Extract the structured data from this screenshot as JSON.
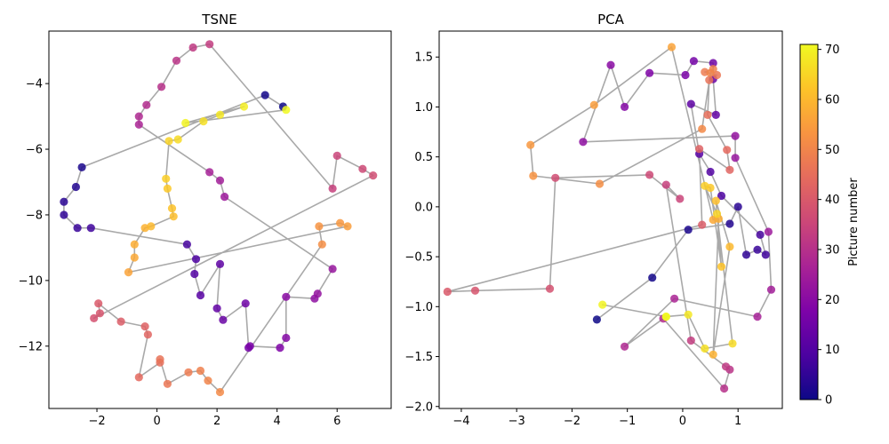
{
  "chart_data": [
    {
      "type": "scatter",
      "title": "TSNE",
      "xlim": [
        -3.6,
        7.8
      ],
      "ylim": [
        -13.9,
        -2.4
      ],
      "xticks": [
        -2,
        0,
        2,
        4,
        6
      ],
      "yticks": [
        -12,
        -10,
        -8,
        -6,
        -4
      ],
      "points": [
        {
          "x": 4.2,
          "y": -4.7,
          "t": 0
        },
        {
          "x": 3.6,
          "y": -4.35,
          "t": 1
        },
        {
          "x": -2.5,
          "y": -6.55,
          "t": 2
        },
        {
          "x": -2.7,
          "y": -7.15,
          "t": 3
        },
        {
          "x": -3.1,
          "y": -7.6,
          "t": 4
        },
        {
          "x": -3.1,
          "y": -8.0,
          "t": 5
        },
        {
          "x": -2.65,
          "y": -8.4,
          "t": 6
        },
        {
          "x": -2.2,
          "y": -8.4,
          "t": 7
        },
        {
          "x": 1.0,
          "y": -8.9,
          "t": 8
        },
        {
          "x": 1.3,
          "y": -9.35,
          "t": 9
        },
        {
          "x": 1.25,
          "y": -9.8,
          "t": 10
        },
        {
          "x": 1.45,
          "y": -10.45,
          "t": 11
        },
        {
          "x": 2.1,
          "y": -9.5,
          "t": 12
        },
        {
          "x": 2.0,
          "y": -10.85,
          "t": 13
        },
        {
          "x": 2.2,
          "y": -11.2,
          "t": 14
        },
        {
          "x": 2.95,
          "y": -10.7,
          "t": 15
        },
        {
          "x": 3.05,
          "y": -12.05,
          "t": 16
        },
        {
          "x": 3.1,
          "y": -12.0,
          "t": 17
        },
        {
          "x": 4.1,
          "y": -12.05,
          "t": 18
        },
        {
          "x": 4.3,
          "y": -11.75,
          "t": 19
        },
        {
          "x": 4.3,
          "y": -10.5,
          "t": 20
        },
        {
          "x": 5.25,
          "y": -10.55,
          "t": 21
        },
        {
          "x": 5.35,
          "y": -10.4,
          "t": 22
        },
        {
          "x": 5.85,
          "y": -9.65,
          "t": 23
        },
        {
          "x": 2.25,
          "y": -7.45,
          "t": 24
        },
        {
          "x": 2.1,
          "y": -6.95,
          "t": 25
        },
        {
          "x": 1.75,
          "y": -6.7,
          "t": 26
        },
        {
          "x": -0.6,
          "y": -5.25,
          "t": 27
        },
        {
          "x": -0.6,
          "y": -5.0,
          "t": 28
        },
        {
          "x": -0.35,
          "y": -4.65,
          "t": 29
        },
        {
          "x": 0.15,
          "y": -4.1,
          "t": 30
        },
        {
          "x": 0.65,
          "y": -3.3,
          "t": 31
        },
        {
          "x": 1.2,
          "y": -2.9,
          "t": 32
        },
        {
          "x": 1.75,
          "y": -2.8,
          "t": 33
        },
        {
          "x": 5.85,
          "y": -7.2,
          "t": 34
        },
        {
          "x": 6.0,
          "y": -6.2,
          "t": 35
        },
        {
          "x": 6.85,
          "y": -6.6,
          "t": 36
        },
        {
          "x": 7.2,
          "y": -6.8,
          "t": 37
        },
        {
          "x": -2.1,
          "y": -11.15,
          "t": 38
        },
        {
          "x": -1.9,
          "y": -11.0,
          "t": 39
        },
        {
          "x": -1.95,
          "y": -10.7,
          "t": 40
        },
        {
          "x": -1.2,
          "y": -11.25,
          "t": 41
        },
        {
          "x": -0.4,
          "y": -11.4,
          "t": 42
        },
        {
          "x": -0.3,
          "y": -11.65,
          "t": 43
        },
        {
          "x": -0.6,
          "y": -12.95,
          "t": 44
        },
        {
          "x": 0.1,
          "y": -12.5,
          "t": 45
        },
        {
          "x": 0.1,
          "y": -12.4,
          "t": 46
        },
        {
          "x": 0.35,
          "y": -13.15,
          "t": 47
        },
        {
          "x": 1.05,
          "y": -12.8,
          "t": 48
        },
        {
          "x": 1.45,
          "y": -12.75,
          "t": 49
        },
        {
          "x": 1.7,
          "y": -13.05,
          "t": 50
        },
        {
          "x": 2.1,
          "y": -13.4,
          "t": 51
        },
        {
          "x": 5.5,
          "y": -8.9,
          "t": 52
        },
        {
          "x": 5.4,
          "y": -8.35,
          "t": 53
        },
        {
          "x": 6.1,
          "y": -8.25,
          "t": 54
        },
        {
          "x": 6.35,
          "y": -8.35,
          "t": 55
        },
        {
          "x": -0.95,
          "y": -9.75,
          "t": 56
        },
        {
          "x": -0.75,
          "y": -9.3,
          "t": 57
        },
        {
          "x": -0.75,
          "y": -8.9,
          "t": 58
        },
        {
          "x": -0.4,
          "y": -8.4,
          "t": 59
        },
        {
          "x": -0.2,
          "y": -8.35,
          "t": 60
        },
        {
          "x": 0.55,
          "y": -8.05,
          "t": 61
        },
        {
          "x": 0.5,
          "y": -7.8,
          "t": 62
        },
        {
          "x": 0.35,
          "y": -7.2,
          "t": 63
        },
        {
          "x": 0.3,
          "y": -6.9,
          "t": 64
        },
        {
          "x": 0.4,
          "y": -5.75,
          "t": 65
        },
        {
          "x": 0.7,
          "y": -5.7,
          "t": 66
        },
        {
          "x": 1.55,
          "y": -5.15,
          "t": 67
        },
        {
          "x": 2.1,
          "y": -4.95,
          "t": 68
        },
        {
          "x": 2.9,
          "y": -4.7,
          "t": 69
        },
        {
          "x": 0.95,
          "y": -5.2,
          "t": 70
        },
        {
          "x": 4.3,
          "y": -4.8,
          "t": 71
        }
      ]
    },
    {
      "type": "scatter",
      "title": "PCA",
      "xlim": [
        -4.4,
        1.8
      ],
      "ylim": [
        -2.02,
        1.76
      ],
      "xticks": [
        -4,
        -3,
        -2,
        -1,
        0,
        1
      ],
      "yticks": [
        -2.0,
        -1.5,
        -1.0,
        -0.5,
        0.0,
        0.5,
        1.0,
        1.5
      ],
      "points": [
        {
          "x": -1.55,
          "y": -1.13,
          "t": 0
        },
        {
          "x": -0.55,
          "y": -0.71,
          "t": 1
        },
        {
          "x": 0.1,
          "y": -0.23,
          "t": 2
        },
        {
          "x": 0.85,
          "y": -0.17,
          "t": 3
        },
        {
          "x": 1.0,
          "y": 0.0,
          "t": 4
        },
        {
          "x": 1.15,
          "y": -0.48,
          "t": 5
        },
        {
          "x": 1.35,
          "y": -0.43,
          "t": 6
        },
        {
          "x": 1.5,
          "y": -0.48,
          "t": 7
        },
        {
          "x": 1.4,
          "y": -0.28,
          "t": 8
        },
        {
          "x": 0.7,
          "y": 0.11,
          "t": 9
        },
        {
          "x": 0.5,
          "y": 0.35,
          "t": 10
        },
        {
          "x": 0.3,
          "y": 0.53,
          "t": 11
        },
        {
          "x": 0.15,
          "y": 1.03,
          "t": 12
        },
        {
          "x": 0.6,
          "y": 0.92,
          "t": 13
        },
        {
          "x": 0.55,
          "y": 1.28,
          "t": 14
        },
        {
          "x": 0.55,
          "y": 1.44,
          "t": 15
        },
        {
          "x": 0.2,
          "y": 1.46,
          "t": 16
        },
        {
          "x": 0.05,
          "y": 1.32,
          "t": 17
        },
        {
          "x": -0.6,
          "y": 1.34,
          "t": 18
        },
        {
          "x": -1.05,
          "y": 1.0,
          "t": 19
        },
        {
          "x": -1.3,
          "y": 1.42,
          "t": 20
        },
        {
          "x": -1.8,
          "y": 0.65,
          "t": 21
        },
        {
          "x": 0.95,
          "y": 0.71,
          "t": 22
        },
        {
          "x": 0.95,
          "y": 0.49,
          "t": 23
        },
        {
          "x": 1.55,
          "y": -0.25,
          "t": 24
        },
        {
          "x": 1.6,
          "y": -0.83,
          "t": 25
        },
        {
          "x": 1.35,
          "y": -1.1,
          "t": 26
        },
        {
          "x": -0.15,
          "y": -0.92,
          "t": 27
        },
        {
          "x": -1.05,
          "y": -1.4,
          "t": 28
        },
        {
          "x": -0.35,
          "y": -1.12,
          "t": 29
        },
        {
          "x": 0.75,
          "y": -1.82,
          "t": 30
        },
        {
          "x": 0.85,
          "y": -1.63,
          "t": 31
        },
        {
          "x": 0.78,
          "y": -1.6,
          "t": 32
        },
        {
          "x": 0.15,
          "y": -1.34,
          "t": 33
        },
        {
          "x": -0.3,
          "y": 0.22,
          "t": 34
        },
        {
          "x": -0.05,
          "y": 0.08,
          "t": 35
        },
        {
          "x": -0.6,
          "y": 0.32,
          "t": 36
        },
        {
          "x": -2.3,
          "y": 0.29,
          "t": 37
        },
        {
          "x": -2.4,
          "y": -0.82,
          "t": 38
        },
        {
          "x": -3.75,
          "y": -0.84,
          "t": 39
        },
        {
          "x": -4.25,
          "y": -0.85,
          "t": 40
        },
        {
          "x": 0.35,
          "y": -0.18,
          "t": 41
        },
        {
          "x": 0.3,
          "y": 0.58,
          "t": 42
        },
        {
          "x": 0.85,
          "y": 0.37,
          "t": 43
        },
        {
          "x": 0.8,
          "y": 0.57,
          "t": 44
        },
        {
          "x": 0.45,
          "y": 0.92,
          "t": 45
        },
        {
          "x": 0.48,
          "y": 1.27,
          "t": 46
        },
        {
          "x": 0.62,
          "y": 1.32,
          "t": 47
        },
        {
          "x": 0.4,
          "y": 1.35,
          "t": 48
        },
        {
          "x": 0.55,
          "y": 1.38,
          "t": 49
        },
        {
          "x": 0.5,
          "y": 1.34,
          "t": 50
        },
        {
          "x": 0.35,
          "y": 0.78,
          "t": 51
        },
        {
          "x": -1.5,
          "y": 0.23,
          "t": 52
        },
        {
          "x": -2.7,
          "y": 0.31,
          "t": 53
        },
        {
          "x": -2.75,
          "y": 0.62,
          "t": 54
        },
        {
          "x": -1.6,
          "y": 1.02,
          "t": 55
        },
        {
          "x": -0.2,
          "y": 1.6,
          "t": 56
        },
        {
          "x": 0.55,
          "y": -0.13,
          "t": 57
        },
        {
          "x": 0.65,
          "y": -0.12,
          "t": 58
        },
        {
          "x": 0.55,
          "y": -1.48,
          "t": 59
        },
        {
          "x": 0.85,
          "y": -0.4,
          "t": 60
        },
        {
          "x": 0.6,
          "y": 0.06,
          "t": 61
        },
        {
          "x": 0.7,
          "y": -0.6,
          "t": 62
        },
        {
          "x": 0.5,
          "y": 0.19,
          "t": 63
        },
        {
          "x": 0.4,
          "y": 0.21,
          "t": 64
        },
        {
          "x": 0.62,
          "y": -0.07,
          "t": 65
        },
        {
          "x": 0.9,
          "y": -1.37,
          "t": 66
        },
        {
          "x": 0.4,
          "y": -1.42,
          "t": 67
        },
        {
          "x": 0.1,
          "y": -1.08,
          "t": 68
        },
        {
          "x": -0.3,
          "y": -1.1,
          "t": 69
        },
        {
          "x": -1.45,
          "y": -0.98,
          "t": 70
        },
        {
          "x": -0.3,
          "y": -1.1,
          "t": 71
        }
      ]
    }
  ],
  "colorbar": {
    "label": "Picture number",
    "min": 0,
    "max": 71,
    "ticks": [
      0,
      10,
      20,
      30,
      40,
      50,
      60,
      70
    ]
  },
  "colors": {
    "line": "#a9a9a9",
    "colormap": "plasma"
  }
}
